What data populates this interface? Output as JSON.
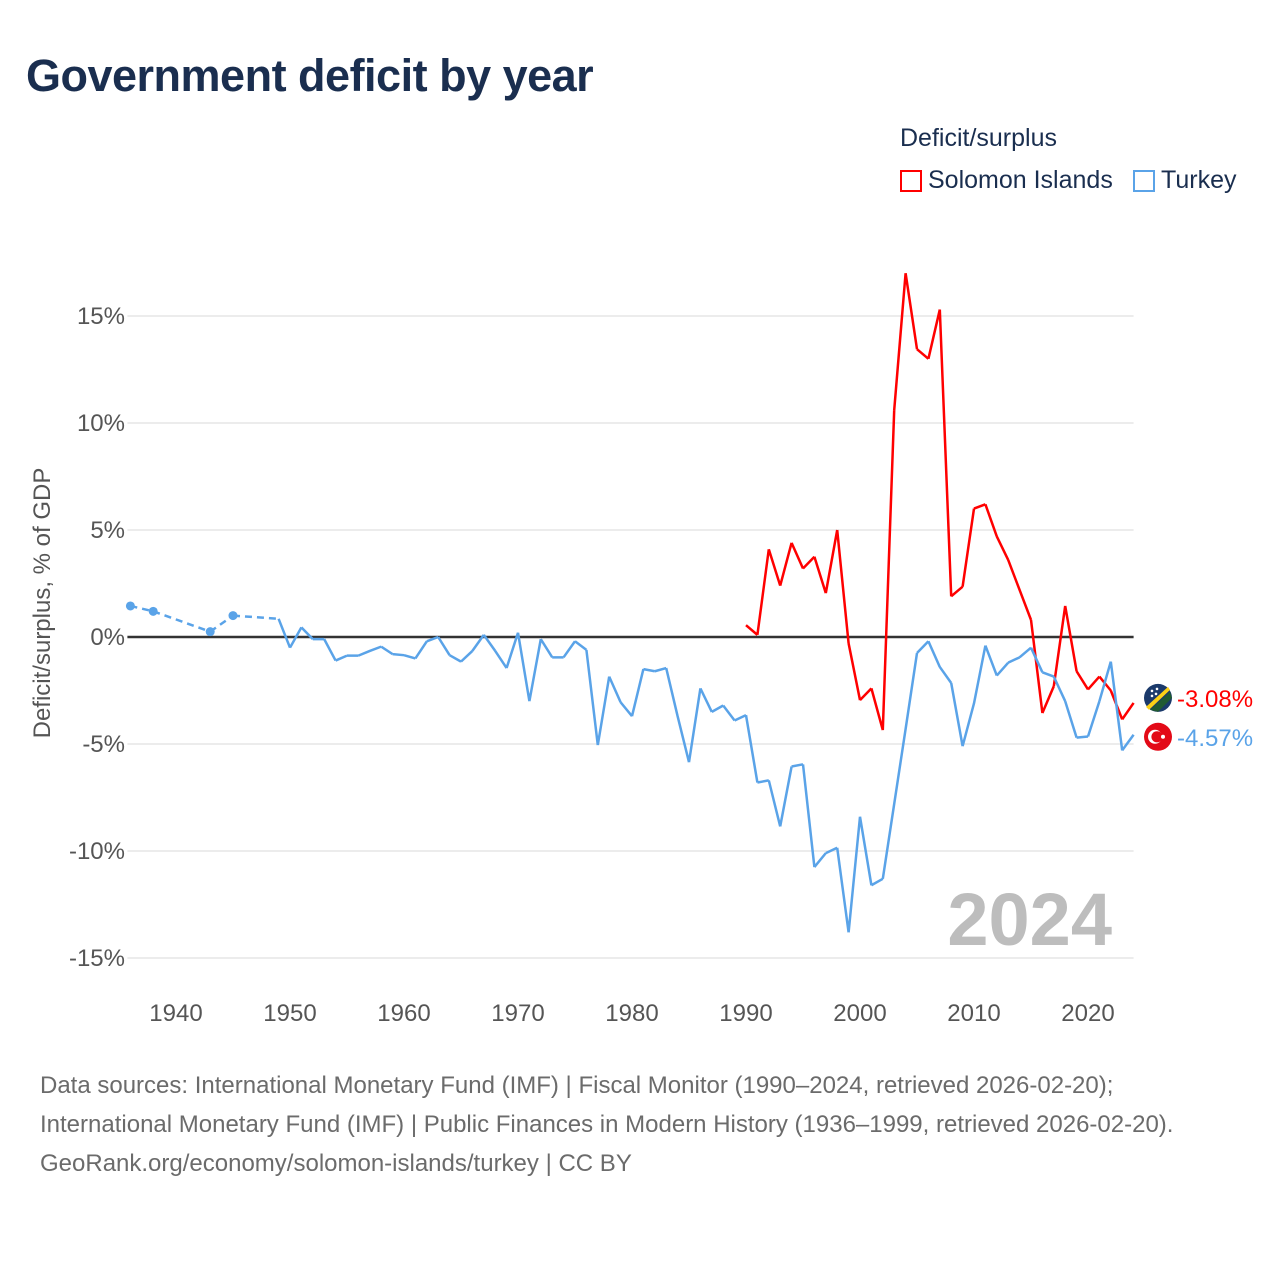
{
  "title": "Government deficit by year",
  "legend": {
    "title": "Deficit/surplus",
    "items": [
      {
        "label": "Solomon Islands",
        "color": "#ff0000"
      },
      {
        "label": "Turkey",
        "color": "#5aa3e8"
      }
    ]
  },
  "footer": {
    "sources": "Data sources: International Monetary Fund (IMF) | Fiscal Monitor (1990–2024, retrieved 2026-02-20); International Monetary Fund (IMF) | Public Finances in Modern History (1936–1999, retrieved 2026-02-20).",
    "attribution": "GeoRank.org/economy/solomon-islands/turkey | CC BY"
  },
  "chart_data": {
    "type": "line",
    "title": "Government deficit by year",
    "xlabel": "",
    "ylabel": "Deficit/surplus, % of GDP",
    "xlim": [
      1936,
      2024
    ],
    "ylim": [
      -16,
      18
    ],
    "xticks": [
      1940,
      1950,
      1960,
      1970,
      1980,
      1990,
      2000,
      2010,
      2020
    ],
    "yticks": [
      -15,
      -10,
      -5,
      0,
      5,
      10,
      15
    ],
    "ytick_labels": [
      "-15%",
      "-10%",
      "-5%",
      "0%",
      "5%",
      "10%",
      "15%"
    ],
    "grid": true,
    "legend_position": "top-right",
    "year_watermark": "2024",
    "series": [
      {
        "name": "Solomon Islands",
        "color": "#ff0000",
        "end_label": "-3.08%",
        "flag": "solomon-islands",
        "x": [
          1990,
          1991,
          1992,
          1993,
          1994,
          1995,
          1996,
          1997,
          1998,
          1999,
          2000,
          2001,
          2002,
          2003,
          2004,
          2005,
          2006,
          2007,
          2008,
          2009,
          2010,
          2011,
          2012,
          2013,
          2014,
          2015,
          2016,
          2017,
          2018,
          2019,
          2020,
          2021,
          2022,
          2023,
          2024
        ],
        "values": [
          0.55,
          0.1,
          4.1,
          2.4,
          4.4,
          3.2,
          3.75,
          2.05,
          5.0,
          -0.3,
          -2.95,
          -2.4,
          -4.35,
          10.6,
          17.0,
          13.45,
          13.0,
          15.3,
          1.9,
          2.35,
          6.0,
          6.2,
          4.7,
          3.6,
          2.2,
          0.8,
          -3.55,
          -2.3,
          1.45,
          -1.6,
          -2.45,
          -1.85,
          -2.5,
          -3.85,
          -3.08
        ]
      },
      {
        "name": "Turkey",
        "color": "#5aa3e8",
        "end_label": "-4.57%",
        "flag": "turkey",
        "x": [
          1936,
          1938,
          1943,
          1945,
          1949,
          1950,
          1951,
          1952,
          1953,
          1954,
          1955,
          1956,
          1957,
          1958,
          1959,
          1960,
          1961,
          1962,
          1963,
          1964,
          1965,
          1966,
          1967,
          1968,
          1969,
          1970,
          1971,
          1972,
          1973,
          1974,
          1975,
          1976,
          1977,
          1978,
          1979,
          1980,
          1981,
          1982,
          1983,
          1984,
          1985,
          1986,
          1987,
          1988,
          1989,
          1990,
          1991,
          1992,
          1993,
          1994,
          1995,
          1996,
          1997,
          1998,
          1999,
          2000,
          2001,
          2002,
          2003,
          2004,
          2005,
          2006,
          2007,
          2008,
          2009,
          2010,
          2011,
          2012,
          2013,
          2014,
          2015,
          2016,
          2017,
          2018,
          2019,
          2020,
          2021,
          2022,
          2023,
          2024
        ],
        "values": [
          1.45,
          1.2,
          0.25,
          1.0,
          0.85,
          -0.5,
          0.45,
          -0.1,
          -0.1,
          -1.1,
          -0.87,
          -0.87,
          -0.65,
          -0.45,
          -0.8,
          -0.85,
          -1.0,
          -0.2,
          0.0,
          -0.85,
          -1.15,
          -0.65,
          0.1,
          -0.65,
          -1.45,
          0.2,
          -3.0,
          -0.1,
          -0.95,
          -0.95,
          -0.2,
          -0.6,
          -5.05,
          -1.85,
          -3.05,
          -3.7,
          -1.5,
          -1.6,
          -1.45,
          -3.7,
          -5.85,
          -2.4,
          -3.5,
          -3.2,
          -3.9,
          -3.65,
          -6.8,
          -6.7,
          -8.85,
          -6.05,
          -5.95,
          -10.75,
          -10.1,
          -9.85,
          -13.8,
          -8.4,
          -11.6,
          -11.3,
          -7.8,
          -4.3,
          -0.75,
          -0.2,
          -1.4,
          -2.15,
          -5.1,
          -3.1,
          -0.4,
          -1.8,
          -1.2,
          -0.95,
          -0.5,
          -1.65,
          -1.85,
          -3.0,
          -4.7,
          -4.65,
          -3.0,
          -1.15,
          -5.3,
          -4.57
        ]
      }
    ]
  }
}
